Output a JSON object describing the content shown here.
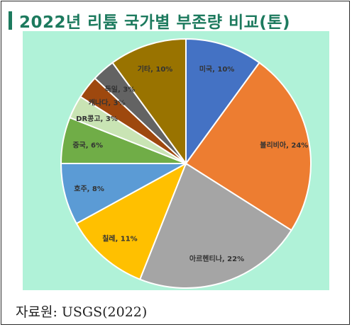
{
  "title": "2022년 리튬 국가별 부존량 비교(톤)",
  "source": "자료원: USGS(2022)",
  "colors": {
    "title": "#1d7a5e",
    "chart_background": "#b0f2d8"
  },
  "chart_data": {
    "type": "pie",
    "title": "2022년 리튬 국가별 부존량 비교(톤)",
    "slices": [
      {
        "label": "미국",
        "value": 10,
        "display": "미국, 10%",
        "color": "#4472c4"
      },
      {
        "label": "볼리비아",
        "value": 24,
        "display": "볼리비아, 24%",
        "color": "#ed7d31"
      },
      {
        "label": "아르헨티나",
        "value": 22,
        "display": "아르헨티나, 22%",
        "color": "#a5a5a5"
      },
      {
        "label": "칠레",
        "value": 11,
        "display": "칠레, 11%",
        "color": "#ffc000"
      },
      {
        "label": "호주",
        "value": 8,
        "display": "호주, 8%",
        "color": "#5b9bd5"
      },
      {
        "label": "중국",
        "value": 6,
        "display": "중국, 6%",
        "color": "#70ad47"
      },
      {
        "label": "DR콩고",
        "value": 3,
        "display": "DR콩고, 3%",
        "color": "#c9e4b4"
      },
      {
        "label": "캐나다",
        "value": 3,
        "display": "캐나다, 3%",
        "color": "#9e480e"
      },
      {
        "label": "독일",
        "value": 3,
        "display": "독일, 3%",
        "color": "#636363"
      },
      {
        "label": "기타",
        "value": 10,
        "display": "기타, 10%",
        "color": "#997300"
      }
    ],
    "start_angle_deg": 0,
    "direction": "clockwise",
    "data_labels": "category, percent",
    "legend": "none"
  }
}
